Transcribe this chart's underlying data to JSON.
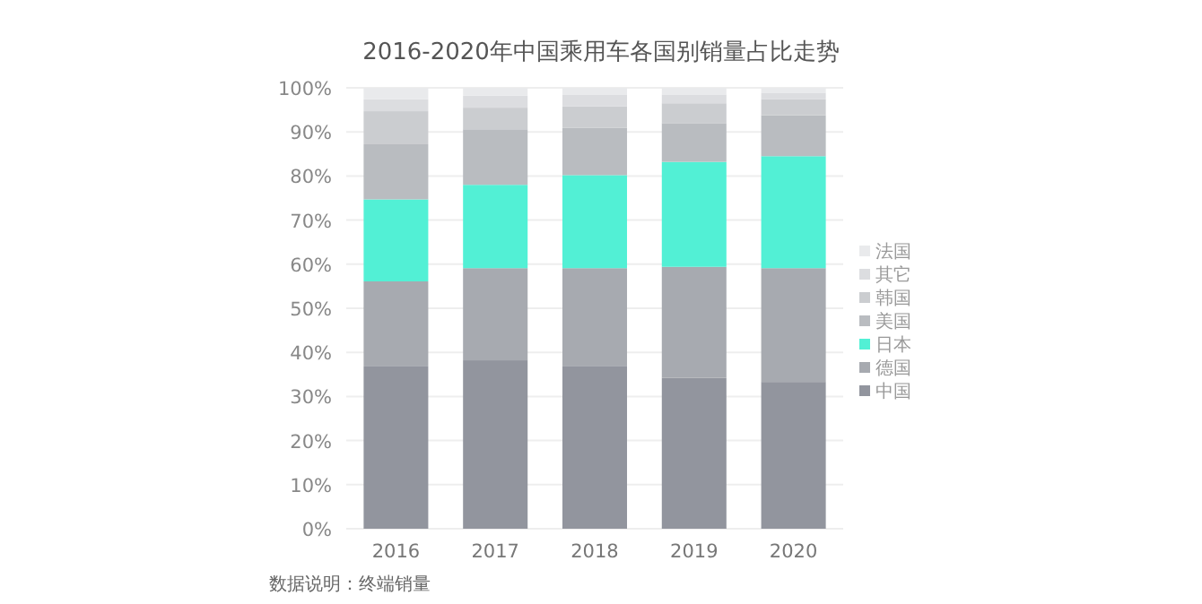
{
  "chart_data": {
    "type": "bar",
    "title": "2016-2020年中国乘用车各国别销量占比走势",
    "stacked": true,
    "categories": [
      "2016",
      "2017",
      "2018",
      "2019",
      "2020"
    ],
    "series": [
      {
        "name": "中国",
        "color": "#92959e",
        "values": [
          36.8,
          38.2,
          36.8,
          34.2,
          33.3
        ]
      },
      {
        "name": "德国",
        "color": "#a7aab0",
        "values": [
          19.3,
          20.9,
          22.3,
          25.2,
          25.8
        ]
      },
      {
        "name": "日本",
        "color": "#52f0d5",
        "values": [
          18.6,
          18.9,
          21.1,
          23.8,
          25.4
        ]
      },
      {
        "name": "美国",
        "color": "#b9bcc0",
        "values": [
          12.5,
          12.6,
          10.7,
          8.8,
          9.3
        ]
      },
      {
        "name": "韩国",
        "color": "#cbcdd0",
        "values": [
          7.5,
          4.9,
          4.9,
          4.5,
          3.6
        ]
      },
      {
        "name": "其它",
        "color": "#dcdde0",
        "values": [
          2.7,
          2.7,
          2.7,
          2.0,
          1.5
        ]
      },
      {
        "name": "法国",
        "color": "#e9eaec",
        "values": [
          2.6,
          1.8,
          1.5,
          1.5,
          1.1
        ]
      }
    ],
    "ylim": [
      0,
      100
    ],
    "yticks": [
      {
        "value": 0,
        "label": "0%"
      },
      {
        "value": 10,
        "label": "10%"
      },
      {
        "value": 20,
        "label": "20%"
      },
      {
        "value": 30,
        "label": "30%"
      },
      {
        "value": 40,
        "label": "40%"
      },
      {
        "value": 50,
        "label": "50%"
      },
      {
        "value": 60,
        "label": "60%"
      },
      {
        "value": 70,
        "label": "70%"
      },
      {
        "value": 80,
        "label": "80%"
      },
      {
        "value": 90,
        "label": "90%"
      },
      {
        "value": 100,
        "label": "100%"
      }
    ],
    "grid": "y",
    "legend": "right",
    "annotations": [
      "数据说明：终端销量"
    ]
  }
}
